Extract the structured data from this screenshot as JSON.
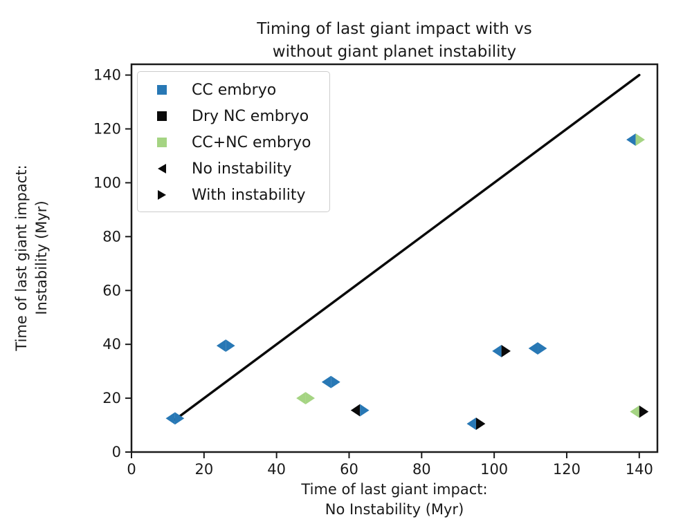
{
  "title": {
    "line1": "Timing of last giant impact with vs",
    "line2": "without giant planet instability"
  },
  "axes": {
    "xlabel_line1": "Time of last giant impact:",
    "xlabel_line2": "No Instability (Myr)",
    "ylabel_line1": "Time of last giant impact:",
    "ylabel_line2": "Instability (Myr)",
    "x_ticks": [
      0,
      20,
      40,
      60,
      80,
      100,
      120,
      140
    ],
    "y_ticks": [
      0,
      20,
      40,
      60,
      80,
      100,
      120,
      140
    ]
  },
  "legend": {
    "entries": [
      {
        "label": "CC embryo",
        "marker": "square",
        "color": "#2878b5"
      },
      {
        "label": "Dry NC embryo",
        "marker": "square",
        "color": "#0a0a0a"
      },
      {
        "label": "CC+NC embryo",
        "marker": "square",
        "color": "#a5d483"
      },
      {
        "label": "No instability",
        "marker": "triangle-left",
        "color": "#0a0a0a"
      },
      {
        "label": "With instability",
        "marker": "triangle-right",
        "color": "#0a0a0a"
      }
    ]
  },
  "chart_data": {
    "type": "scatter",
    "title": "Timing of last giant impact with vs without giant planet instability",
    "xlabel": "Time of last giant impact: No Instability (Myr)",
    "ylabel": "Time of last giant impact: Instability (Myr)",
    "xlim": [
      0,
      145
    ],
    "ylim": [
      0,
      144
    ],
    "grid": false,
    "legend_position": "upper left",
    "marker_note": "each point is a pair: left-pointing triangle = no-instability embryo type, right-pointing triangle = with-instability embryo type",
    "colors": {
      "CC": "#2878b5",
      "Dry NC": "#0a0a0a",
      "CC+NC": "#a5d483"
    },
    "identity_line": {
      "x1": 12,
      "y1": 12,
      "x2": 140,
      "y2": 140,
      "color": "#0a0a0a"
    },
    "points": [
      {
        "x": 12,
        "y": 12.5,
        "left": "CC",
        "right": "CC"
      },
      {
        "x": 26,
        "y": 39.5,
        "left": "CC",
        "right": "CC"
      },
      {
        "x": 48,
        "y": 20,
        "left": "CC+NC",
        "right": "CC+NC"
      },
      {
        "x": 55,
        "y": 26,
        "left": "CC",
        "right": "CC"
      },
      {
        "x": 63,
        "y": 15.5,
        "left": "Dry NC",
        "right": "CC"
      },
      {
        "x": 95,
        "y": 10.5,
        "left": "CC",
        "right": "Dry NC"
      },
      {
        "x": 102,
        "y": 37.5,
        "left": "CC",
        "right": "Dry NC"
      },
      {
        "x": 112,
        "y": 38.5,
        "left": "CC",
        "right": "CC"
      },
      {
        "x": 139,
        "y": 116,
        "left": "CC",
        "right": "CC+NC"
      },
      {
        "x": 140,
        "y": 15,
        "left": "CC+NC",
        "right": "Dry NC"
      }
    ]
  }
}
